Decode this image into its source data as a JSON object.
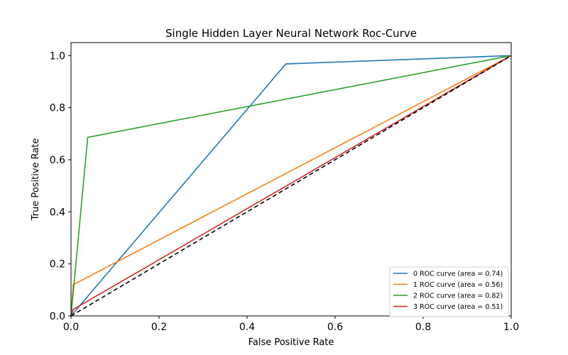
{
  "chart_data": {
    "type": "line",
    "title": "Single Hidden Layer Neural Network Roc-Curve",
    "xlabel": "False Positive Rate",
    "ylabel": "True Positive Rate",
    "xlim": [
      0.0,
      1.0
    ],
    "ylim": [
      0.0,
      1.05
    ],
    "xticks": [
      "0.0",
      "0.2",
      "0.4",
      "0.6",
      "0.8",
      "1.0"
    ],
    "yticks": [
      "0.0",
      "0.2",
      "0.4",
      "0.6",
      "0.8",
      "1.0"
    ],
    "grid": false,
    "legend_position": "lower-right",
    "series": [
      {
        "name": "0 ROC curve (area = 0.74)",
        "color": "#1f77b4",
        "x": [
          0.0,
          0.488,
          1.0
        ],
        "y": [
          0.0,
          0.968,
          1.0
        ]
      },
      {
        "name": "1 ROC curve (area = 0.56)",
        "color": "#ff7f0e",
        "x": [
          0.0,
          0.005,
          1.0
        ],
        "y": [
          0.0,
          0.12,
          1.0
        ]
      },
      {
        "name": "2 ROC curve (area = 0.82)",
        "color": "#2ca02c",
        "x": [
          0.0,
          0.038,
          1.0
        ],
        "y": [
          0.0,
          0.686,
          1.0
        ]
      },
      {
        "name": "3 ROC curve (area = 0.51)",
        "color": "#d62728",
        "x": [
          0.0,
          0.005,
          1.0
        ],
        "y": [
          0.0,
          0.025,
          1.0
        ]
      }
    ],
    "reference_line": {
      "x": [
        0.0,
        1.0
      ],
      "y": [
        0.0,
        1.0
      ],
      "color": "#000000",
      "style": "dashed"
    }
  }
}
